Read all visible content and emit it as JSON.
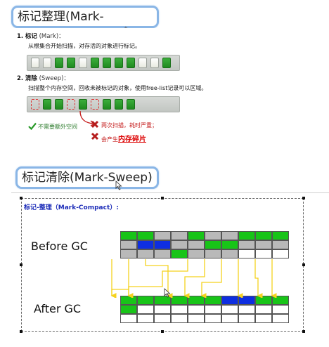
{
  "top_title": "标记整理(Mark-Compact)",
  "mark": {
    "number": "1.",
    "label": "标记",
    "en": "(Mark)：",
    "desc": "从根集合开始扫描，对存活的对象进行标记。"
  },
  "sweep": {
    "number": "2.",
    "label": "清除",
    "en": "(Sweep)：",
    "desc": "扫描整个内存空间，回收未被标记的对象，使用free-list记录可以区域。"
  },
  "notes": {
    "pro": "不需要额外空间",
    "con1": "两次扫描，耗时严重；",
    "con2_prefix": "会产生",
    "con2_em": "内存碎片"
  },
  "bottom_title": "标记清除(Mark-Sweep)",
  "diagram": {
    "heading": "标记-整理（Mark-Compact）:",
    "before_label": "Before GC",
    "after_label": "After GC"
  },
  "colors": {
    "live": "#18c418",
    "special": "#0e2ee0",
    "garbage": "#b9b9b9",
    "free": "#ffffff",
    "arrow": "#f5d21e",
    "accent_red": "#d32020"
  }
}
